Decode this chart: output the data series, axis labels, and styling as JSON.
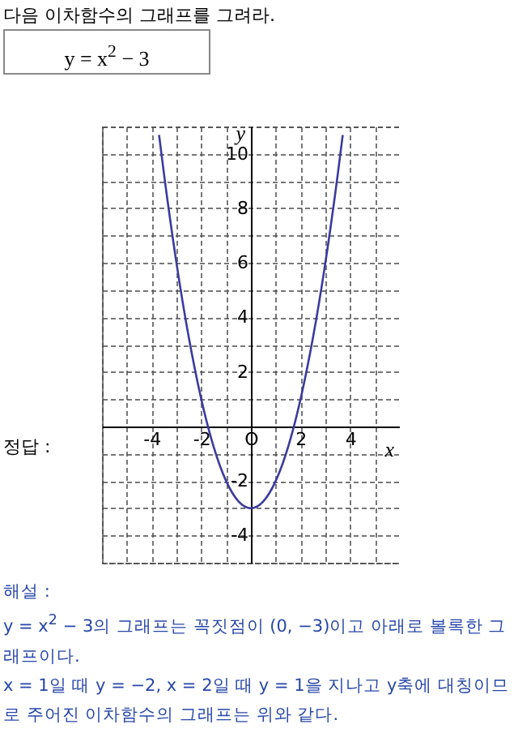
{
  "chart_data": {
    "type": "line",
    "title": "다음 이차함수의 그래프를 그려라.",
    "subtitle": "y = x$^{2}$ − 3",
    "xlabel": "x",
    "ylabel": "y",
    "x": [
      -3.7,
      -3.5,
      -3,
      -2.5,
      -2,
      -1.5,
      -1,
      -0.5,
      0,
      0.5,
      1,
      1.5,
      2,
      2.5,
      3,
      3.5,
      3.7
    ],
    "series": [
      {
        "color": "#3b3b9e",
        "values": [
          10.69,
          9.25,
          6,
          3.25,
          1,
          -0.75,
          -2,
          -2.75,
          -3,
          -2.75,
          -2,
          -0.75,
          1,
          3.25,
          6,
          9.25,
          10.69
        ]
      }
    ],
    "xlim": [
      -6,
      6
    ],
    "ylim": [
      -5,
      11
    ],
    "xticks": [
      {
        "value": -6,
        "label": null
      },
      {
        "value": -5,
        "label": null
      },
      -4,
      {
        "value": -3,
        "label": null
      },
      -2,
      {
        "value": -1,
        "label": null
      },
      {
        "value": 0,
        "label": "O"
      },
      {
        "value": 1,
        "label": null
      },
      2,
      {
        "value": 3,
        "label": null
      },
      4,
      {
        "value": 5,
        "label": null
      },
      {
        "value": 6,
        "label": null
      }
    ],
    "yticks": [
      {
        "value": -5,
        "label": null
      },
      -4,
      {
        "value": -3,
        "label": null
      },
      -2,
      {
        "value": -1,
        "label": null
      },
      {
        "value": 0,
        "label": null
      },
      {
        "value": 1,
        "label": null
      },
      2,
      {
        "value": 3,
        "label": null
      },
      4,
      {
        "value": 5,
        "label": null
      },
      6,
      {
        "value": 7,
        "label": null
      },
      8,
      {
        "value": 9,
        "label": null
      },
      10,
      {
        "value": 11,
        "label": null
      }
    ],
    "grid": true,
    "marker": "none",
    "line_style": "solid",
    "legend": false,
    "annotations": [
      "정답 :",
      "해설 :",
      "y = x$^{2}$ − 3의 그래프는 꼭짓점이 (0, −3)이고 아래로 볼록한 그래프이다.",
      "x = 1일 때 y = −2, x = 2일 때 y = 1을 지나고 y축에 대칭이므로 주어진 이차함수의 그래프는 위와 같다."
    ]
  }
}
